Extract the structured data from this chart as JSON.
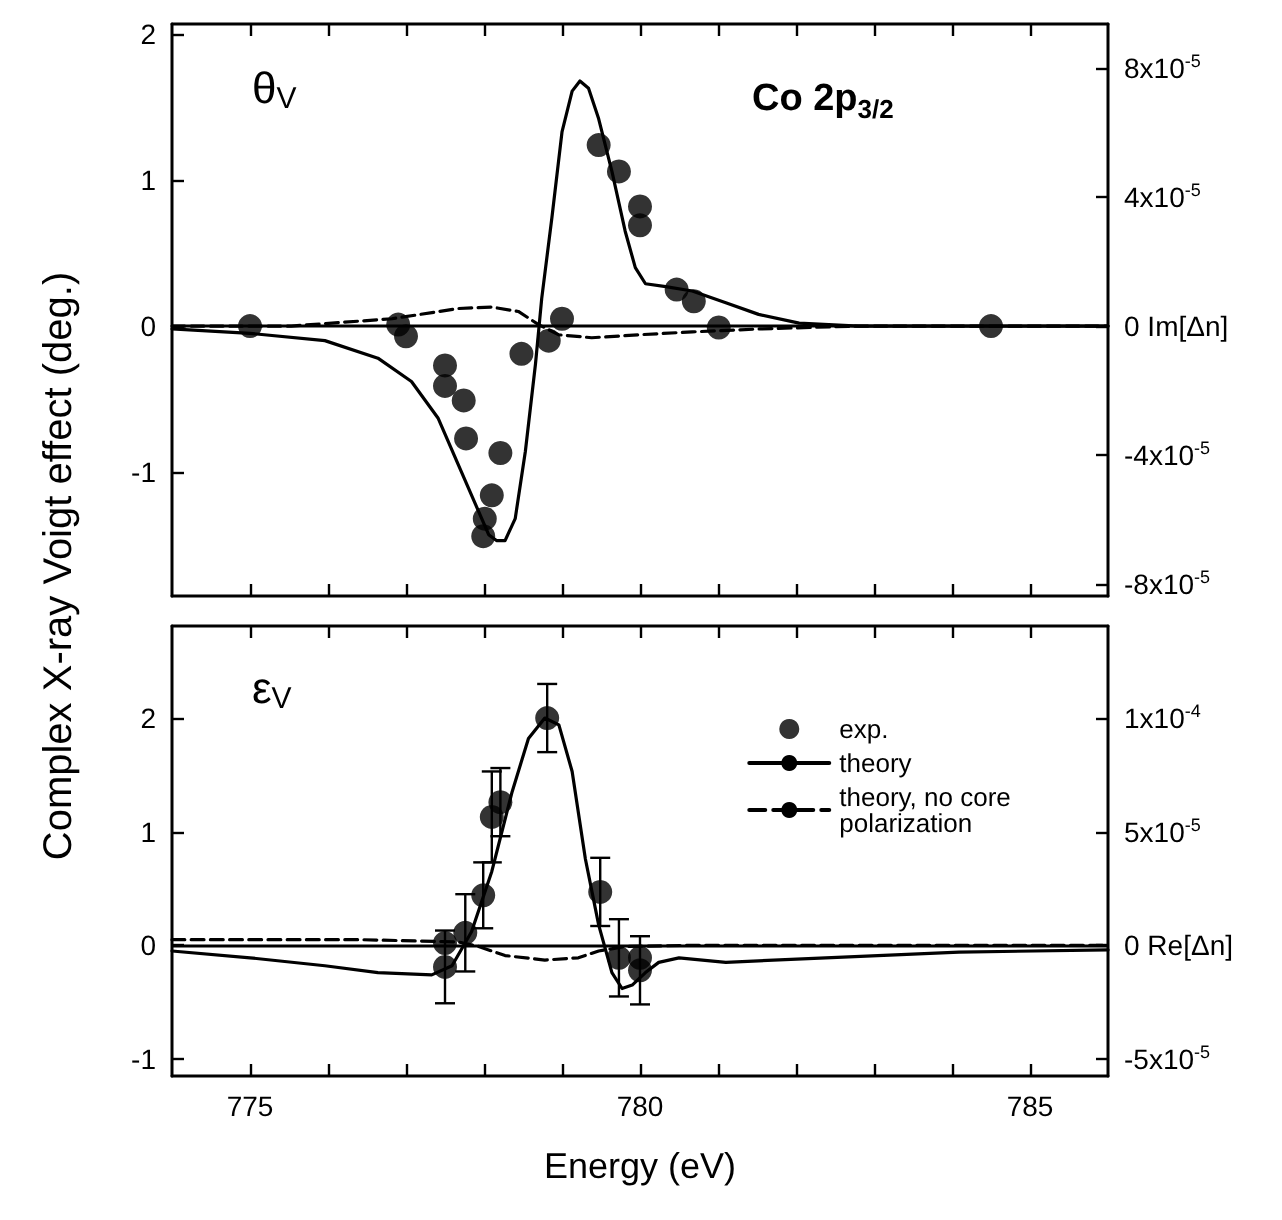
{
  "chart_data": [
    {
      "type": "line",
      "ylabel": "Complex X-ray Voigt effect  (deg.)",
      "annotations": [
        "θ$_{V}$",
        "Co 2p$_{3/2}$"
      ],
      "xlim": [
        774,
        786
      ],
      "xticks": [
        {
          "value": 775,
          "label": null
        },
        {
          "value": 776,
          "label": null
        },
        {
          "value": 777,
          "label": null
        },
        {
          "value": 778,
          "label": null
        },
        {
          "value": 779,
          "label": null
        },
        {
          "value": 780,
          "label": null
        },
        {
          "value": 781,
          "label": null
        },
        {
          "value": 782,
          "label": null
        },
        {
          "value": 783,
          "label": null
        },
        {
          "value": 784,
          "label": null
        },
        {
          "value": 785,
          "label": null
        }
      ],
      "ylim": [
        -1.85,
        2.07
      ],
      "yticks": [
        -1,
        0,
        1,
        2
      ],
      "y2lim": [
        -8.38e-05,
        9.38e-05
      ],
      "y2ticks": [
        {
          "value": -8e-05,
          "label": "-8x10$^{-5}$"
        },
        {
          "value": -4e-05,
          "label": "-4x10$^{-5}$"
        },
        {
          "value": 0,
          "label": "0 Im[Δn]"
        },
        {
          "value": 4e-05,
          "label": "4x10$^{-5}$"
        },
        {
          "value": 8e-05,
          "label": "8x10$^{-5}$"
        }
      ],
      "tick_labels": "y",
      "grid": false,
      "legend": false,
      "ref_lines": [
        {
          "axis": "y",
          "value": 0,
          "color": "#000000"
        }
      ],
      "series": [
        {
          "type": "line",
          "color": "#000000",
          "line_style": "dashed",
          "marker": "none",
          "x": [
            774,
            775.53,
            776.82,
            777.67,
            778.1,
            778.44,
            778.7,
            778.96,
            779.38,
            779.98,
            780.67,
            781.52,
            782.8,
            786
          ],
          "values": [
            0,
            0,
            0.05,
            0.12,
            0.13,
            0.1,
            0.01,
            -0.06,
            -0.08,
            -0.06,
            -0.04,
            -0.02,
            0,
            0
          ]
        },
        {
          "type": "line",
          "color": "#000000",
          "line_style": "solid",
          "marker": "none",
          "x": [
            774,
            775,
            775.96,
            776.64,
            777.07,
            777.41,
            777.67,
            777.89,
            778.06,
            778.16,
            778.27,
            778.4,
            778.53,
            778.66,
            778.74,
            778.87,
            779,
            779.13,
            779.23,
            779.34,
            779.47,
            779.64,
            779.81,
            779.94,
            780.07,
            780.33,
            780.67,
            781.1,
            781.52,
            782.04,
            782.8,
            786
          ],
          "values": [
            -0.02,
            -0.05,
            -0.1,
            -0.22,
            -0.38,
            -0.63,
            -0.95,
            -1.22,
            -1.43,
            -1.47,
            -1.47,
            -1.32,
            -0.86,
            -0.26,
            0.19,
            0.74,
            1.33,
            1.61,
            1.68,
            1.63,
            1.42,
            1.06,
            0.65,
            0.4,
            0.29,
            0.27,
            0.24,
            0.16,
            0.08,
            0.02,
            0,
            0
          ]
        },
        {
          "type": "scatter",
          "color": "#000000",
          "marker": "circle",
          "x": [
            775,
            776.9,
            777,
            777.5,
            777.5,
            777.74,
            777.77,
            778.21,
            778.1,
            778.01,
            777.99,
            778.48,
            778.83,
            779,
            779.47,
            779.73,
            780,
            780,
            780.47,
            780.69,
            781.01,
            784.5
          ],
          "values": [
            0,
            0.01,
            -0.07,
            -0.27,
            -0.41,
            -0.51,
            -0.77,
            -0.87,
            -1.16,
            -1.32,
            -1.44,
            -0.19,
            -0.1,
            0.05,
            1.24,
            1.06,
            0.82,
            0.69,
            0.25,
            0.17,
            -0.01,
            0
          ]
        }
      ]
    },
    {
      "type": "line",
      "xlabel": "Energy (eV)",
      "annotations": [
        "ε$_{V}$"
      ],
      "xlim": [
        774,
        786
      ],
      "xticks": [
        775,
        {
          "value": 776,
          "label": null
        },
        {
          "value": 777,
          "label": null
        },
        {
          "value": 778,
          "label": null
        },
        {
          "value": 779,
          "label": null
        },
        780,
        {
          "value": 781,
          "label": null
        },
        {
          "value": 782,
          "label": null
        },
        {
          "value": 783,
          "label": null
        },
        {
          "value": 784,
          "label": null
        },
        785
      ],
      "ylim": [
        -1.15,
        2.81
      ],
      "yticks": [
        -1,
        0,
        1,
        2
      ],
      "y2lim": [
        -5.75e-05,
        0.0001405
      ],
      "y2ticks": [
        {
          "value": -5e-05,
          "label": "-5x10$^{-5}$"
        },
        {
          "value": 0,
          "label": "0 Re[Δn]"
        },
        {
          "value": 5e-05,
          "label": "5x10$^{-5}$"
        },
        {
          "value": 0.0001,
          "label": "1x10$^{-4}$"
        }
      ],
      "grid": false,
      "legend": "top right",
      "ref_lines": [
        {
          "axis": "y",
          "value": 0,
          "color": "#000000"
        }
      ],
      "series": [
        {
          "name": "exp.",
          "type": "scatter",
          "color": "#000000",
          "marker": "circle",
          "x": [
            777.5,
            777.5,
            777.76,
            777.99,
            778.1,
            778.21,
            778.81,
            779.49,
            779.73,
            780,
            780
          ],
          "values": [
            0.02,
            -0.19,
            0.11,
            0.44,
            1.13,
            1.26,
            2.0,
            0.47,
            -0.11,
            -0.11,
            -0.22
          ],
          "errors": [
            null,
            0.32,
            0.34,
            0.29,
            0.4,
            0.3,
            0.3,
            0.3,
            0.34,
            null,
            0.3
          ]
        },
        {
          "name": "theory",
          "type": "line",
          "color": "#000000",
          "line_style": "solid",
          "marker": "none",
          "x": [
            774,
            775,
            775.96,
            776.64,
            777.33,
            777.59,
            777.84,
            778.1,
            778.36,
            778.57,
            778.78,
            778.96,
            779.13,
            779.3,
            779.47,
            779.64,
            779.77,
            779.9,
            780.07,
            780.24,
            780.5,
            781.1,
            782.38,
            784.09,
            786
          ],
          "values": [
            -0.05,
            -0.11,
            -0.18,
            -0.24,
            -0.26,
            -0.18,
            0.12,
            0.65,
            1.35,
            1.82,
            2.0,
            1.94,
            1.53,
            0.76,
            0.18,
            -0.24,
            -0.38,
            -0.35,
            -0.24,
            -0.15,
            -0.11,
            -0.15,
            -0.11,
            -0.06,
            -0.04
          ]
        },
        {
          "name": "theory, no core polarization",
          "type": "line",
          "color": "#000000",
          "line_style": "dashed",
          "marker": "none",
          "x": [
            774,
            776.39,
            777.67,
            777.93,
            778.27,
            778.78,
            779.21,
            779.47,
            779.81,
            780.67,
            786
          ],
          "values": [
            0.05,
            0.05,
            0.03,
            -0.01,
            -0.09,
            -0.13,
            -0.11,
            -0.05,
            -0.01,
            0,
            0
          ]
        }
      ]
    }
  ]
}
